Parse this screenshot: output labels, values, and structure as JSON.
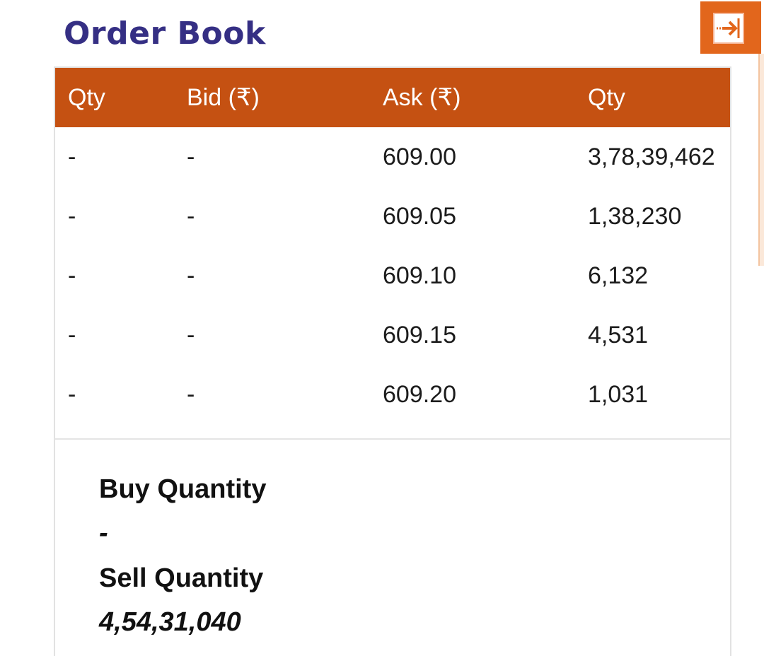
{
  "title": "Order Book",
  "exit_icon": "exit-arrow-icon",
  "accent_color": "#c55112",
  "title_color": "#352f84",
  "table": {
    "headers": [
      "Qty",
      "Bid (₹)",
      "Ask (₹)",
      "Qty"
    ],
    "rows": [
      [
        "-",
        "-",
        "609.00",
        "3,78,39,462"
      ],
      [
        "-",
        "-",
        "609.05",
        "1,38,230"
      ],
      [
        "-",
        "-",
        "609.10",
        "6,132"
      ],
      [
        "-",
        "-",
        "609.15",
        "4,531"
      ],
      [
        "-",
        "-",
        "609.20",
        "1,031"
      ]
    ]
  },
  "summary": {
    "buy_label": "Buy Quantity",
    "buy_value": "-",
    "sell_label": "Sell Quantity",
    "sell_value": "4,54,31,040"
  }
}
